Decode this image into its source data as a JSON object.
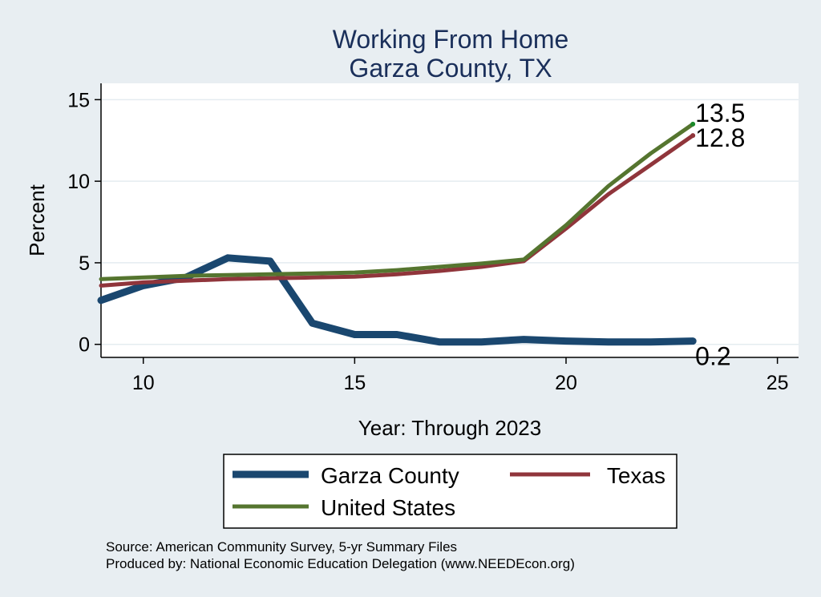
{
  "chart_data": {
    "type": "line",
    "title": "Working From Home",
    "subtitle": "Garza County, TX",
    "xlabel": "Year: Through 2023",
    "ylabel": "Percent",
    "xlim": [
      9,
      25.5
    ],
    "ylim": [
      -0.8,
      16
    ],
    "xticks": [
      10,
      15,
      20,
      25
    ],
    "yticks": [
      0,
      5,
      10,
      15
    ],
    "grid": true,
    "legend_position": "bottom",
    "x": [
      9,
      10,
      11,
      12,
      13,
      14,
      15,
      16,
      17,
      18,
      19,
      20,
      21,
      22,
      23
    ],
    "series": [
      {
        "name": "Garza County",
        "color": "#1a476f",
        "values": [
          2.7,
          3.6,
          4.1,
          5.3,
          5.1,
          1.3,
          0.6,
          0.6,
          0.15,
          0.15,
          0.3,
          0.2,
          0.15,
          0.15,
          0.2
        ],
        "end_label": "0.2"
      },
      {
        "name": "Texas",
        "color": "#90353b",
        "values": [
          3.6,
          3.8,
          3.9,
          4.0,
          4.05,
          4.1,
          4.15,
          4.3,
          4.5,
          4.75,
          5.1,
          7.1,
          9.2,
          11.0,
          12.8
        ],
        "end_label": "12.8"
      },
      {
        "name": "United States",
        "color": "#55752f",
        "values": [
          4.0,
          4.1,
          4.2,
          4.25,
          4.3,
          4.35,
          4.4,
          4.55,
          4.75,
          4.95,
          5.2,
          7.3,
          9.7,
          11.7,
          13.5
        ],
        "end_label": "13.5"
      }
    ],
    "source": "Source: American Community Survey, 5-yr Summary Files",
    "producer": "Produced by: National Economic Education Delegation (www.NEEDEcon.org)"
  }
}
